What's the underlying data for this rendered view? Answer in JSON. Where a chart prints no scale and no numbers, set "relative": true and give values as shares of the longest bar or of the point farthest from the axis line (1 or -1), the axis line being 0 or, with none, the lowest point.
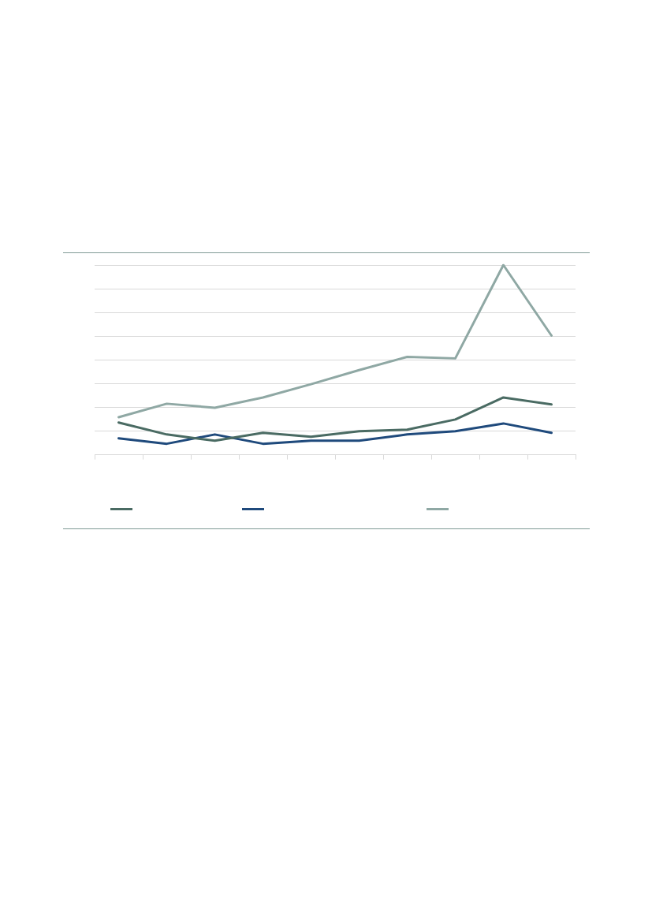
{
  "chart_data": {
    "type": "line",
    "relative": true,
    "grid": "y",
    "marker": "none",
    "line_style": "solid",
    "categories": [
      null,
      null,
      null,
      null,
      null,
      null,
      null,
      null,
      null,
      null
    ],
    "series": [
      {
        "color": "#4a6b63",
        "values": [
          0.17,
          0.107,
          0.074,
          0.116,
          0.095,
          0.124,
          0.132,
          0.186,
          0.302,
          0.265
        ]
      },
      {
        "color": "#1f4a7c",
        "values": [
          0.087,
          0.058,
          0.107,
          0.058,
          0.074,
          0.074,
          0.107,
          0.124,
          0.165,
          0.116
        ]
      },
      {
        "color": "#8fa8a4",
        "values": [
          0.198,
          0.269,
          0.248,
          0.302,
          0.372,
          0.446,
          0.516,
          0.508,
          1,
          0.628
        ]
      }
    ]
  }
}
